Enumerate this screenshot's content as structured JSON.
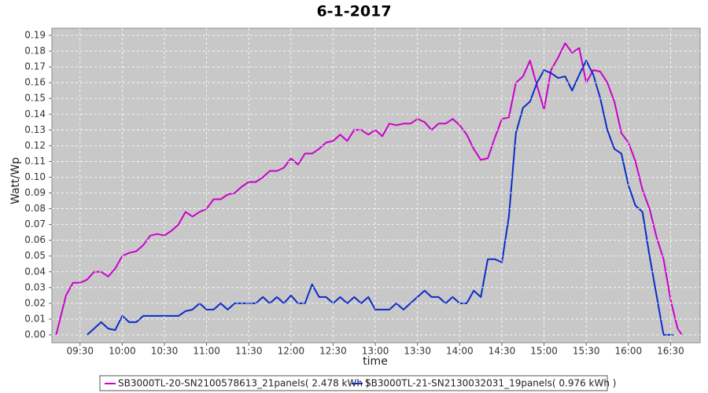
{
  "chart_data": {
    "type": "line",
    "title": "6-1-2017",
    "x_label": "time",
    "y_label": "Watt/Wp",
    "xlim": [
      "09:10",
      "16:51"
    ],
    "ylim": [
      -0.005,
      0.1945
    ],
    "xticks": [
      "09:30",
      "10:00",
      "10:30",
      "11:00",
      "11:30",
      "12:00",
      "12:30",
      "13:00",
      "13:30",
      "14:00",
      "14:30",
      "15:00",
      "15:30",
      "16:00",
      "16:30"
    ],
    "yticks": [
      {
        "value": 0,
        "label": "0.00"
      },
      0.01,
      0.02,
      0.03,
      0.04,
      0.05,
      0.06,
      0.07,
      0.08,
      0.09,
      {
        "value": 0.1,
        "label": "0.10"
      },
      0.11,
      0.12,
      0.13,
      0.14,
      0.15,
      0.16,
      0.17,
      0.18,
      0.19
    ],
    "grid": true,
    "legend": "bottom",
    "series": [
      {
        "name": "SB3000TL-20-SN2100578613_21panels( 2.478 kWh )",
        "color": "#cc00cc",
        "x": [
          "09:13",
          "09:20",
          "09:25",
          "09:30",
          "09:35",
          "09:40",
          "09:45",
          "09:50",
          "09:55",
          "10:00",
          "10:05",
          "10:10",
          "10:15",
          "10:20",
          "10:25",
          "10:30",
          "10:35",
          "10:40",
          "10:45",
          "10:50",
          "10:55",
          "11:00",
          "11:05",
          "11:10",
          "11:15",
          "11:20",
          "11:25",
          "11:30",
          "11:35",
          "11:40",
          "11:45",
          "11:50",
          "11:55",
          "12:00",
          "12:05",
          "12:10",
          "12:15",
          "12:20",
          "12:25",
          "12:30",
          "12:35",
          "12:40",
          "12:45",
          "12:50",
          "12:55",
          "13:00",
          "13:05",
          "13:10",
          "13:15",
          "13:20",
          "13:25",
          "13:30",
          "13:35",
          "13:40",
          "13:45",
          "13:50",
          "13:55",
          "14:00",
          "14:05",
          "14:10",
          "14:15",
          "14:20",
          "14:25",
          "14:30",
          "14:35",
          "14:40",
          "14:45",
          "14:50",
          "14:55",
          "15:00",
          "15:05",
          "15:10",
          "15:15",
          "15:20",
          "15:25",
          "15:30",
          "15:35",
          "15:40",
          "15:45",
          "15:50",
          "15:55",
          "16:00",
          "16:05",
          "16:10",
          "16:15",
          "16:20",
          "16:25",
          "16:30",
          "16:35",
          "16:38"
        ],
        "values": [
          0,
          0.025,
          0.033,
          0.033,
          0.035,
          0.04,
          0.04,
          0.037,
          0.042,
          0.05,
          0.052,
          0.053,
          0.057,
          0.063,
          0.064,
          0.063,
          0.066,
          0.07,
          0.078,
          0.075,
          0.078,
          0.08,
          0.086,
          0.086,
          0.089,
          0.09,
          0.094,
          0.097,
          0.097,
          0.1,
          0.104,
          0.104,
          0.106,
          0.112,
          0.108,
          0.115,
          0.115,
          0.118,
          0.122,
          0.123,
          0.127,
          0.123,
          0.13,
          0.13,
          0.127,
          0.13,
          0.126,
          0.134,
          0.133,
          0.134,
          0.134,
          0.137,
          0.135,
          0.13,
          0.134,
          0.134,
          0.137,
          0.133,
          0.127,
          0.118,
          0.111,
          0.112,
          0.125,
          0.137,
          0.138,
          0.16,
          0.164,
          0.174,
          0.158,
          0.143,
          0.168,
          0.176,
          0.185,
          0.179,
          0.182,
          0.16,
          0.168,
          0.167,
          0.16,
          0.148,
          0.128,
          0.122,
          0.11,
          0.092,
          0.08,
          0.062,
          0.048,
          0.022,
          0.004,
          0
        ]
      },
      {
        "name": "SB3000TL-21-SN2130032031_19panels( 0.976 kWh )",
        "color": "#0a2dc8",
        "x": [
          "09:35",
          "09:40",
          "09:45",
          "09:50",
          "09:55",
          "10:00",
          "10:05",
          "10:10",
          "10:15",
          "10:20",
          "10:30",
          "10:40",
          "10:45",
          "10:50",
          "10:55",
          "11:00",
          "11:05",
          "11:10",
          "11:15",
          "11:20",
          "11:30",
          "11:35",
          "11:40",
          "11:45",
          "11:50",
          "11:55",
          "12:00",
          "12:05",
          "12:10",
          "12:15",
          "12:20",
          "12:25",
          "12:30",
          "12:35",
          "12:40",
          "12:45",
          "12:50",
          "12:55",
          "13:00",
          "13:05",
          "13:10",
          "13:15",
          "13:20",
          "13:25",
          "13:30",
          "13:35",
          "13:40",
          "13:45",
          "13:50",
          "13:55",
          "14:00",
          "14:05",
          "14:10",
          "14:15",
          "14:20",
          "14:25",
          "14:30",
          "14:35",
          "14:40",
          "14:45",
          "14:50",
          "14:55",
          "15:00",
          "15:05",
          "15:10",
          "15:15",
          "15:20",
          "15:25",
          "15:30",
          "15:35",
          "15:40",
          "15:45",
          "15:50",
          "15:55",
          "16:00",
          "16:05",
          "16:10",
          "16:15",
          "16:20",
          "16:25",
          "16:32"
        ],
        "values": [
          0,
          0.004,
          0.008,
          0.004,
          0.003,
          0.012,
          0.008,
          0.008,
          0.012,
          0.012,
          0.012,
          0.012,
          0.015,
          0.016,
          0.02,
          0.016,
          0.016,
          0.02,
          0.016,
          0.02,
          0.02,
          0.02,
          0.024,
          0.02,
          0.024,
          0.02,
          0.025,
          0.02,
          0.02,
          0.032,
          0.024,
          0.024,
          0.02,
          0.024,
          0.02,
          0.024,
          0.02,
          0.024,
          0.016,
          0.016,
          0.016,
          0.02,
          0.016,
          0.02,
          0.024,
          0.028,
          0.024,
          0.024,
          0.02,
          0.024,
          0.02,
          0.02,
          0.028,
          0.024,
          0.048,
          0.048,
          0.046,
          0.075,
          0.128,
          0.144,
          0.148,
          0.16,
          0.168,
          0.166,
          0.163,
          0.164,
          0.155,
          0.165,
          0.174,
          0.165,
          0.15,
          0.13,
          0.118,
          0.115,
          0.095,
          0.082,
          0.078,
          0.05,
          0.025,
          0,
          0
        ]
      }
    ]
  }
}
